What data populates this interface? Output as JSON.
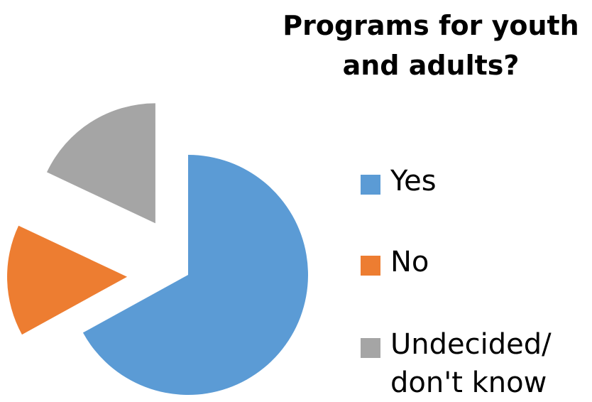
{
  "chart_data": {
    "type": "pie",
    "title_lines": [
      "Programs for youth",
      "and adults?"
    ],
    "categories": [
      "Yes",
      "No",
      "Undecided/ don't know"
    ],
    "legend_lines": [
      [
        "Yes"
      ],
      [
        "No"
      ],
      [
        "Undecided/",
        "don't know"
      ]
    ],
    "values": [
      67,
      15,
      18
    ],
    "colors": [
      "#5B9BD5",
      "#ED7D31",
      "#A5A5A5"
    ],
    "exploded": true,
    "legend_position": "right"
  }
}
